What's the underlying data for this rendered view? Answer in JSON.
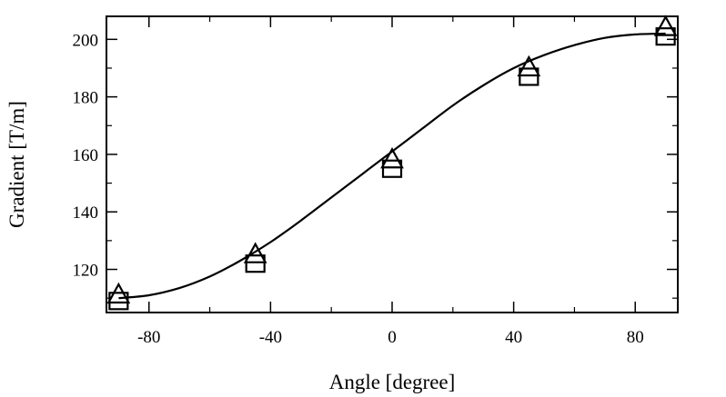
{
  "chart_data": {
    "type": "scatter",
    "xlabel": "Angle [degree]",
    "ylabel": "Gradient [T/m]",
    "xlim": [
      -94,
      94
    ],
    "ylim": [
      105,
      208
    ],
    "x_ticks": [
      -80,
      -40,
      0,
      40,
      80
    ],
    "y_ticks": [
      120,
      140,
      160,
      180,
      200
    ],
    "grid": false,
    "series": [
      {
        "marker": "triangle",
        "x": [
          -90,
          -45,
          0,
          45,
          90
        ],
        "y": [
          111,
          125,
          158,
          190,
          204
        ]
      },
      {
        "marker": "square",
        "x": [
          -90,
          -45,
          0,
          45,
          90
        ],
        "y": [
          109,
          122,
          155,
          187,
          201
        ]
      }
    ],
    "fit_line": {
      "type": "line",
      "x": [
        -90,
        -80,
        -70,
        -60,
        -50,
        -40,
        -30,
        -20,
        -10,
        0,
        10,
        20,
        30,
        40,
        50,
        60,
        70,
        80,
        90
      ],
      "y": [
        110,
        111,
        113.5,
        117.5,
        123,
        129.5,
        137,
        145,
        153,
        161,
        169,
        177,
        184,
        190,
        194.5,
        198,
        200.5,
        201.7,
        202
      ]
    }
  }
}
